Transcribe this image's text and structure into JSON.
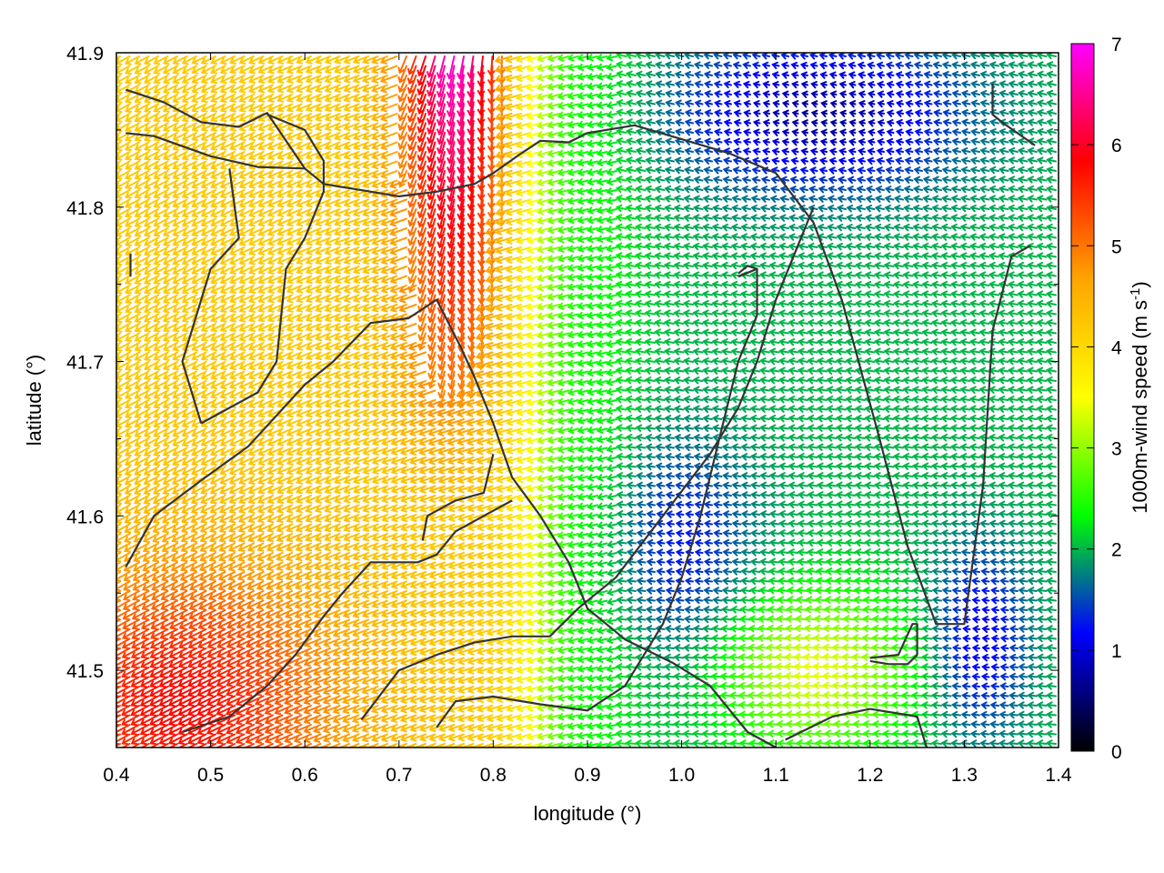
{
  "chart_data": {
    "type": "vector-field",
    "xlabel": "longitude (°)",
    "ylabel": "latitude (°)",
    "xlim": [
      0.4,
      1.4
    ],
    "ylim": [
      41.45,
      41.9
    ],
    "x_ticks": [
      "0.4",
      "0.5",
      "0.6",
      "0.7",
      "0.8",
      "0.9",
      "1.0",
      "1.1",
      "1.2",
      "1.3",
      "1.4"
    ],
    "y_ticks": [
      "41.5",
      "41.6",
      "41.7",
      "41.8",
      "41.9"
    ],
    "colorbar": {
      "label": "1000m-wind speed (m s-1)",
      "label_main": "1000m-wind speed (m s",
      "label_sup": "-1",
      "label_end": ")",
      "range": [
        0,
        7
      ],
      "ticks": [
        "0",
        "1",
        "2",
        "3",
        "4",
        "5",
        "6",
        "7"
      ],
      "stops": [
        "#000000",
        "#0000ff",
        "#00ff00",
        "#ffff00",
        "#ffa500",
        "#ff0000",
        "#ff00ff"
      ]
    },
    "grid": false,
    "contour_color": "#333333",
    "contours": [
      [
        [
          0.41,
          41.876
        ],
        [
          0.45,
          41.868
        ],
        [
          0.49,
          41.855
        ],
        [
          0.53,
          41.852
        ],
        [
          0.56,
          41.861
        ],
        [
          0.6,
          41.825
        ],
        [
          0.62,
          41.815
        ],
        [
          0.7,
          41.807
        ],
        [
          0.74,
          41.81
        ],
        [
          0.78,
          41.815
        ],
        [
          0.8,
          41.822
        ],
        [
          0.83,
          41.835
        ],
        [
          0.85,
          41.843
        ],
        [
          0.88,
          41.842
        ],
        [
          0.9,
          41.848
        ],
        [
          0.95,
          41.853
        ],
        [
          1.0,
          41.844
        ],
        [
          1.05,
          41.835
        ],
        [
          1.1,
          41.822
        ],
        [
          1.14,
          41.79
        ],
        [
          1.17,
          41.74
        ],
        [
          1.21,
          41.65
        ],
        [
          1.24,
          41.58
        ],
        [
          1.27,
          41.53
        ],
        [
          1.3,
          41.53
        ],
        [
          1.32,
          41.62
        ],
        [
          1.33,
          41.72
        ],
        [
          1.35,
          41.768
        ],
        [
          1.37,
          41.775
        ]
      ],
      [
        [
          0.41,
          41.848
        ],
        [
          0.44,
          41.846
        ],
        [
          0.5,
          41.833
        ],
        [
          0.55,
          41.826
        ],
        [
          0.6,
          41.825
        ]
      ],
      [
        [
          0.41,
          41.567
        ],
        [
          0.44,
          41.6
        ],
        [
          0.49,
          41.623
        ],
        [
          0.54,
          41.645
        ],
        [
          0.6,
          41.685
        ],
        [
          0.63,
          41.7
        ],
        [
          0.67,
          41.725
        ],
        [
          0.71,
          41.728
        ],
        [
          0.74,
          41.74
        ],
        [
          0.765,
          41.71
        ],
        [
          0.78,
          41.69
        ],
        [
          0.8,
          41.66
        ],
        [
          0.82,
          41.625
        ],
        [
          0.85,
          41.6
        ],
        [
          0.88,
          41.57
        ],
        [
          0.9,
          41.54
        ],
        [
          0.94,
          41.52
        ],
        [
          0.99,
          41.505
        ],
        [
          1.03,
          41.49
        ],
        [
          1.07,
          41.46
        ],
        [
          1.1,
          41.45
        ]
      ],
      [
        [
          0.66,
          41.468
        ],
        [
          0.7,
          41.5
        ],
        [
          0.74,
          41.51
        ],
        [
          0.78,
          41.518
        ],
        [
          0.82,
          41.522
        ],
        [
          0.86,
          41.522
        ],
        [
          0.89,
          41.54
        ],
        [
          0.93,
          41.56
        ],
        [
          0.98,
          41.6
        ],
        [
          1.03,
          41.64
        ],
        [
          1.06,
          41.67
        ],
        [
          1.08,
          41.7
        ],
        [
          1.1,
          41.74
        ],
        [
          1.12,
          41.77
        ],
        [
          1.14,
          41.8
        ]
      ],
      [
        [
          0.74,
          41.463
        ],
        [
          0.76,
          41.48
        ],
        [
          0.8,
          41.483
        ],
        [
          0.85,
          41.478
        ],
        [
          0.9,
          41.474
        ],
        [
          0.94,
          41.49
        ],
        [
          0.98,
          41.53
        ],
        [
          1.0,
          41.56
        ],
        [
          1.02,
          41.6
        ],
        [
          1.04,
          41.65
        ],
        [
          1.06,
          41.7
        ],
        [
          1.08,
          41.73
        ],
        [
          1.08,
          41.76
        ]
      ],
      [
        [
          0.47,
          41.46
        ],
        [
          0.52,
          41.47
        ],
        [
          0.56,
          41.49
        ],
        [
          0.59,
          41.51
        ],
        [
          0.62,
          41.535
        ],
        [
          0.64,
          41.55
        ],
        [
          0.67,
          41.57
        ],
        [
          0.7,
          41.57
        ],
        [
          0.72,
          41.57
        ],
        [
          0.74,
          41.575
        ],
        [
          0.76,
          41.59
        ],
        [
          0.79,
          41.6
        ],
        [
          0.82,
          41.61
        ]
      ],
      [
        [
          0.49,
          41.66
        ],
        [
          0.52,
          41.67
        ],
        [
          0.55,
          41.68
        ],
        [
          0.57,
          41.7
        ],
        [
          0.58,
          41.76
        ],
        [
          0.6,
          41.78
        ],
        [
          0.62,
          41.81
        ],
        [
          0.62,
          41.83
        ],
        [
          0.6,
          41.85
        ],
        [
          0.56,
          41.86
        ]
      ],
      [
        [
          0.52,
          41.825
        ],
        [
          0.53,
          41.78
        ],
        [
          0.5,
          41.76
        ],
        [
          0.48,
          41.72
        ],
        [
          0.47,
          41.7
        ],
        [
          0.48,
          41.68
        ],
        [
          0.49,
          41.66
        ]
      ],
      [
        [
          0.725,
          41.584
        ],
        [
          0.73,
          41.6
        ],
        [
          0.76,
          41.61
        ],
        [
          0.79,
          41.615
        ],
        [
          0.8,
          41.64
        ]
      ],
      [
        [
          1.2,
          41.506
        ],
        [
          1.22,
          41.504
        ],
        [
          1.24,
          41.504
        ],
        [
          1.25,
          41.51
        ],
        [
          1.25,
          41.53
        ],
        [
          1.245,
          41.53
        ],
        [
          1.23,
          41.51
        ],
        [
          1.2,
          41.508
        ]
      ],
      [
        [
          1.26,
          41.45
        ],
        [
          1.25,
          41.47
        ],
        [
          1.2,
          41.475
        ],
        [
          1.16,
          41.47
        ],
        [
          1.11,
          41.455
        ]
      ],
      [
        [
          1.06,
          41.755
        ],
        [
          1.08,
          41.76
        ],
        [
          1.07,
          41.762
        ],
        [
          1.06,
          41.757
        ]
      ],
      [
        [
          0.415,
          41.755
        ],
        [
          0.415,
          41.77
        ]
      ],
      [
        [
          1.33,
          41.88
        ],
        [
          1.33,
          41.86
        ],
        [
          1.34,
          41.855
        ],
        [
          1.375,
          41.84
        ]
      ]
    ]
  }
}
